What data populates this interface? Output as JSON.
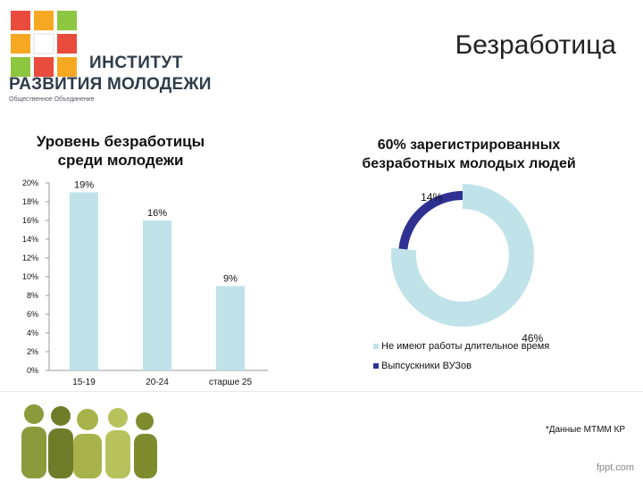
{
  "logo": {
    "line1": "ИНСТИТУТ",
    "line2": "РАЗВИТИЯ МОЛОДЕЖИ",
    "line3": "Общественное Объединение"
  },
  "slide_title": "Безработица",
  "note": "*Данные МТММ КР",
  "footer": "fppt.com",
  "colors": {
    "bar": "#bfe3e8",
    "donut_light": "#bfe3e8",
    "donut_dark": "#2e3192"
  },
  "chart_data": [
    {
      "type": "bar",
      "title": "Уровень безработицы среди молодежи",
      "categories": [
        "15-19",
        "20-24",
        "старше 25"
      ],
      "values": [
        19,
        16,
        9
      ],
      "data_labels": [
        "19%",
        "16%",
        "9%"
      ],
      "ylim": [
        0,
        20
      ],
      "yticks": [
        "0%",
        "2%",
        "4%",
        "6%",
        "8%",
        "10%",
        "12%",
        "14%",
        "16%",
        "18%",
        "20%"
      ],
      "grid": false
    },
    {
      "type": "pie",
      "title": "60% зарегистрированных безработных молодых людей",
      "slices": [
        {
          "label": "Не имеют работы длительное время",
          "value": 46,
          "data_label": "46%"
        },
        {
          "label": "Выпсускники ВУЗов",
          "value": 14,
          "data_label": "14%"
        }
      ],
      "legend_position": "bottom-right"
    }
  ]
}
